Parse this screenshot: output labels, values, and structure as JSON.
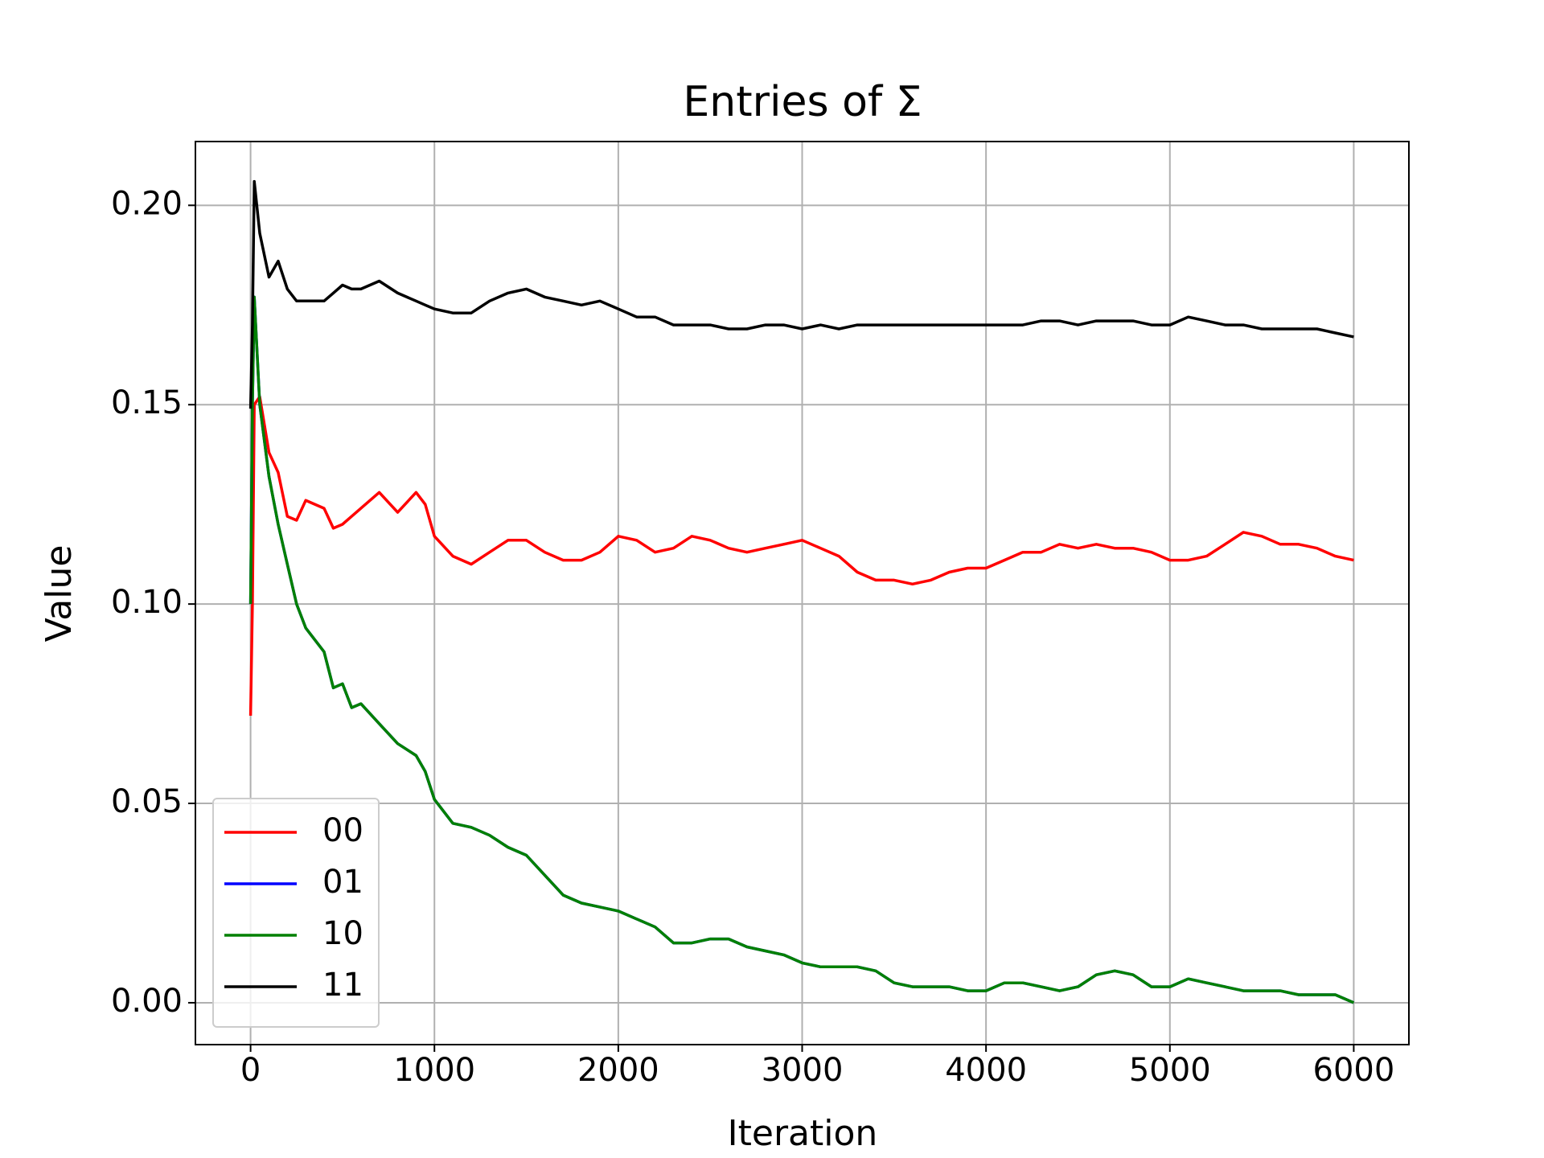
{
  "chart_data": {
    "type": "line",
    "title": "Entries of Σ",
    "xlabel": "Iteration",
    "ylabel": "Value",
    "x": [
      0,
      10,
      20,
      50,
      100,
      150,
      200,
      250,
      300,
      400,
      450,
      500,
      550,
      600,
      700,
      800,
      900,
      950,
      1000,
      1100,
      1200,
      1300,
      1400,
      1500,
      1600,
      1700,
      1800,
      1900,
      2000,
      2100,
      2200,
      2300,
      2400,
      2500,
      2600,
      2700,
      2800,
      2900,
      3000,
      3100,
      3200,
      3300,
      3400,
      3500,
      3600,
      3700,
      3800,
      3900,
      4000,
      4100,
      4200,
      4300,
      4400,
      4500,
      4600,
      4700,
      4800,
      4900,
      5000,
      5100,
      5200,
      5300,
      5400,
      5500,
      5600,
      5700,
      5800,
      5900,
      6000
    ],
    "series": [
      {
        "name": "00",
        "color": "#ff0000",
        "values": [
          0.072,
          0.1,
          0.15,
          0.152,
          0.138,
          0.133,
          0.122,
          0.121,
          0.126,
          0.124,
          0.119,
          0.12,
          0.122,
          0.124,
          0.128,
          0.123,
          0.128,
          0.125,
          0.117,
          0.112,
          0.11,
          0.113,
          0.116,
          0.116,
          0.113,
          0.111,
          0.111,
          0.113,
          0.117,
          0.116,
          0.113,
          0.114,
          0.117,
          0.116,
          0.114,
          0.113,
          0.114,
          0.115,
          0.116,
          0.114,
          0.112,
          0.108,
          0.106,
          0.106,
          0.105,
          0.106,
          0.108,
          0.109,
          0.109,
          0.111,
          0.113,
          0.113,
          0.115,
          0.114,
          0.115,
          0.114,
          0.114,
          0.113,
          0.111,
          0.111,
          0.112,
          0.115,
          0.118,
          0.117,
          0.115,
          0.115,
          0.114,
          0.112,
          0.111
        ]
      },
      {
        "name": "01",
        "color": "#0000ff",
        "values": [
          0.1,
          0.15,
          0.177,
          0.15,
          0.132,
          0.12,
          0.11,
          0.1,
          0.094,
          0.088,
          0.079,
          0.08,
          0.074,
          0.075,
          0.07,
          0.065,
          0.062,
          0.058,
          0.051,
          0.045,
          0.044,
          0.042,
          0.039,
          0.037,
          0.032,
          0.027,
          0.025,
          0.024,
          0.023,
          0.021,
          0.019,
          0.015,
          0.015,
          0.016,
          0.016,
          0.014,
          0.013,
          0.012,
          0.01,
          0.009,
          0.009,
          0.009,
          0.008,
          0.005,
          0.004,
          0.004,
          0.004,
          0.003,
          0.003,
          0.005,
          0.005,
          0.004,
          0.003,
          0.004,
          0.007,
          0.008,
          0.007,
          0.004,
          0.004,
          0.006,
          0.005,
          0.004,
          0.003,
          0.003,
          0.003,
          0.002,
          0.002,
          0.002,
          0.0
        ]
      },
      {
        "name": "10",
        "color": "#008000",
        "values": [
          0.1,
          0.15,
          0.177,
          0.15,
          0.132,
          0.12,
          0.11,
          0.1,
          0.094,
          0.088,
          0.079,
          0.08,
          0.074,
          0.075,
          0.07,
          0.065,
          0.062,
          0.058,
          0.051,
          0.045,
          0.044,
          0.042,
          0.039,
          0.037,
          0.032,
          0.027,
          0.025,
          0.024,
          0.023,
          0.021,
          0.019,
          0.015,
          0.015,
          0.016,
          0.016,
          0.014,
          0.013,
          0.012,
          0.01,
          0.009,
          0.009,
          0.009,
          0.008,
          0.005,
          0.004,
          0.004,
          0.004,
          0.003,
          0.003,
          0.005,
          0.005,
          0.004,
          0.003,
          0.004,
          0.007,
          0.008,
          0.007,
          0.004,
          0.004,
          0.006,
          0.005,
          0.004,
          0.003,
          0.003,
          0.003,
          0.002,
          0.002,
          0.002,
          0.0
        ]
      },
      {
        "name": "11",
        "color": "#000000",
        "values": [
          0.149,
          0.17,
          0.206,
          0.193,
          0.182,
          0.186,
          0.179,
          0.176,
          0.176,
          0.176,
          0.178,
          0.18,
          0.179,
          0.179,
          0.181,
          0.178,
          0.176,
          0.175,
          0.174,
          0.173,
          0.173,
          0.176,
          0.178,
          0.179,
          0.177,
          0.176,
          0.175,
          0.176,
          0.174,
          0.172,
          0.172,
          0.17,
          0.17,
          0.17,
          0.169,
          0.169,
          0.17,
          0.17,
          0.169,
          0.17,
          0.169,
          0.17,
          0.17,
          0.17,
          0.17,
          0.17,
          0.17,
          0.17,
          0.17,
          0.17,
          0.17,
          0.171,
          0.171,
          0.17,
          0.171,
          0.171,
          0.171,
          0.17,
          0.17,
          0.172,
          0.171,
          0.17,
          0.17,
          0.169,
          0.169,
          0.169,
          0.169,
          0.168,
          0.167
        ]
      }
    ],
    "xlim": [
      -300,
      6300
    ],
    "ylim": [
      -0.0105,
      0.216
    ],
    "xticks": [
      0,
      1000,
      2000,
      3000,
      4000,
      5000,
      6000
    ],
    "yticks": [
      {
        "value": 0,
        "label": "0.00"
      },
      {
        "value": 0.05,
        "label": "0.05"
      },
      {
        "value": 0.1,
        "label": "0.10"
      },
      {
        "value": 0.15,
        "label": "0.15"
      },
      {
        "value": 0.2,
        "label": "0.20"
      }
    ],
    "grid": true,
    "legend": "lower left"
  }
}
